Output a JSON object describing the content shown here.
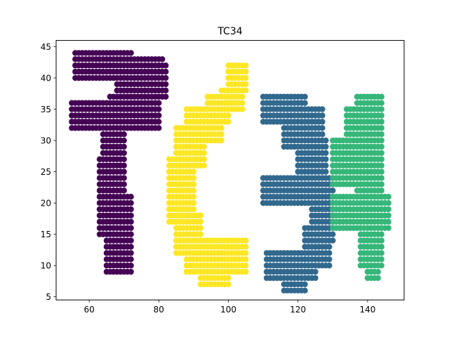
{
  "chart_data": {
    "type": "scatter",
    "title": "TC34",
    "xlabel": "",
    "ylabel": "",
    "xlim": [
      50.5,
      150.5
    ],
    "ylim": [
      4.5,
      46.0
    ],
    "xticks": [
      60,
      80,
      100,
      120,
      140
    ],
    "yticks": [
      5,
      10,
      15,
      20,
      25,
      30,
      35,
      40,
      45
    ],
    "grid": false,
    "legend": "none",
    "series": [
      {
        "color": "#440154",
        "shapes": [
          {
            "x": [
              56,
              72
            ],
            "y": [
              43,
              44
            ]
          },
          {
            "x": [
              56,
              81
            ],
            "y": [
              42,
              43
            ]
          },
          {
            "x": [
              56,
              82
            ],
            "y": [
              40,
              42
            ]
          },
          {
            "x": [
              68,
              82
            ],
            "y": [
              37,
              40
            ]
          },
          {
            "x": [
              66,
              80
            ],
            "y": [
              35,
              37
            ]
          },
          {
            "x": [
              55,
              80
            ],
            "y": [
              32,
              36
            ]
          },
          {
            "x": [
              64,
              70
            ],
            "y": [
              27,
              32
            ]
          },
          {
            "x": [
              63,
              70
            ],
            "y": [
              15,
              27
            ]
          },
          {
            "x": [
              65,
              72
            ],
            "y": [
              9,
              21
            ]
          }
        ]
      },
      {
        "color": "#fde725",
        "shapes": [
          {
            "x": [
              100,
              105
            ],
            "y": [
              38,
              42
            ]
          },
          {
            "x": [
              98,
              104
            ],
            "y": [
              35,
              38
            ]
          },
          {
            "x": [
              94,
              100
            ],
            "y": [
              33,
              37
            ]
          },
          {
            "x": [
              88,
              98
            ],
            "y": [
              30,
              35
            ]
          },
          {
            "x": [
              85,
              93
            ],
            "y": [
              26,
              32
            ]
          },
          {
            "x": [
              83,
              90
            ],
            "y": [
              17,
              27
            ]
          },
          {
            "x": [
              85,
              92
            ],
            "y": [
              12,
              18
            ]
          },
          {
            "x": [
              88,
              105
            ],
            "y": [
              9,
              14
            ]
          },
          {
            "x": [
              92,
              100
            ],
            "y": [
              7,
              10
            ]
          }
        ]
      },
      {
        "color": "#31688e",
        "shapes": [
          {
            "x": [
              110,
              122
            ],
            "y": [
              34,
              37
            ]
          },
          {
            "x": [
              110,
              124
            ],
            "y": [
              33,
              34
            ]
          },
          {
            "x": [
              116,
              127
            ],
            "y": [
              29,
              35
            ]
          },
          {
            "x": [
              120,
              128
            ],
            "y": [
              22,
              30
            ]
          },
          {
            "x": [
              110,
              130
            ],
            "y": [
              20,
              24
            ]
          },
          {
            "x": [
              124,
              130
            ],
            "y": [
              14,
              22
            ]
          },
          {
            "x": [
              122,
              129
            ],
            "y": [
              10,
              16
            ]
          },
          {
            "x": [
              111,
              125
            ],
            "y": [
              8,
              12
            ]
          },
          {
            "x": [
              116,
              122
            ],
            "y": [
              6,
              8
            ]
          }
        ]
      },
      {
        "color": "#35b779",
        "shapes": [
          {
            "x": [
              137,
              144
            ],
            "y": [
              35,
              37
            ]
          },
          {
            "x": [
              134,
              144
            ],
            "y": [
              29,
              35
            ]
          },
          {
            "x": [
              130,
              137
            ],
            "y": [
              23,
              30
            ]
          },
          {
            "x": [
              130,
              146
            ],
            "y": [
              16,
              21
            ]
          },
          {
            "x": [
              137,
              144
            ],
            "y": [
              20,
              30
            ]
          },
          {
            "x": [
              138,
              144
            ],
            "y": [
              10,
              16
            ]
          },
          {
            "x": [
              140,
              143
            ],
            "y": [
              8,
              10
            ]
          }
        ]
      }
    ]
  }
}
